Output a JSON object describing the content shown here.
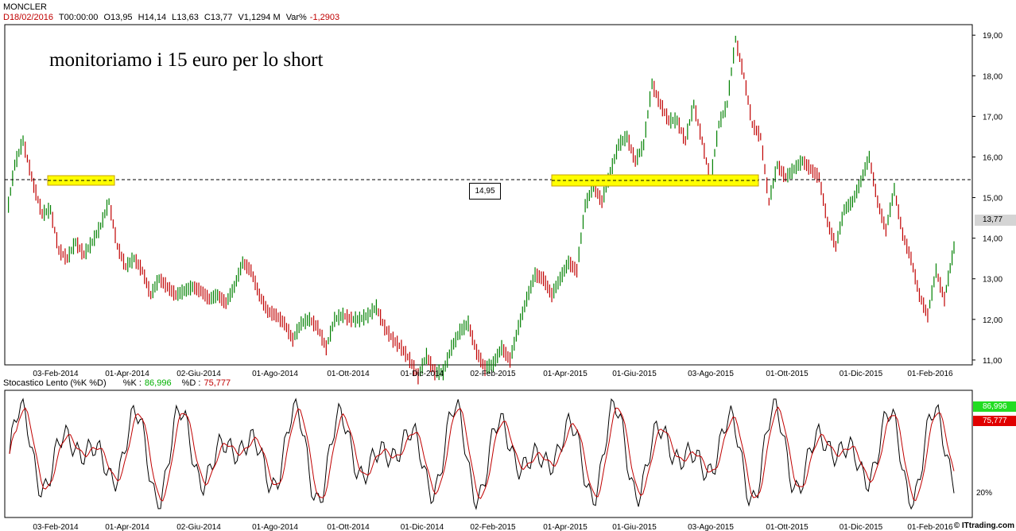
{
  "header": {
    "symbol": "MONCLER",
    "date": "D18/02/2016",
    "time": "T00:00:00",
    "open": "O13,95",
    "high": "H14,14",
    "low": "L13,63",
    "close": "C13,77",
    "volume": "V1,1294 M",
    "var_label": "Var%",
    "var_value": "-1,2903"
  },
  "annotation": "monitoriamo i 15 euro per lo short",
  "level_label": "14,95",
  "last_price_label": "13,77",
  "stochastic": {
    "title": "Stocastico Lento (%K %D)",
    "k_label": "%K :",
    "k_value": "86,996",
    "d_label": "%D :",
    "d_value": "75,777",
    "level_20": "20%"
  },
  "credit": "© ITtrading.com",
  "colors": {
    "up": "#008000",
    "down": "#c00000",
    "highlight": "#ffff00",
    "k_line": "#000000",
    "d_line": "#c00000",
    "overbought": "#00cc00",
    "oversold": "#cc00cc"
  },
  "chart_data": {
    "type": "line",
    "title": "MONCLER",
    "y_ticks": [
      "11,00",
      "12,00",
      "13,00",
      "14,00",
      "15,00",
      "16,00",
      "17,00",
      "18,00",
      "19,00"
    ],
    "ylim": [
      10.9,
      19.2
    ],
    "x_ticks": [
      "03-Feb-2014",
      "01-Apr-2014",
      "02-Giu-2014",
      "01-Ago-2014",
      "01-Ott-2014",
      "01-Dic-2014",
      "02-Feb-2015",
      "01-Apr-2015",
      "01-Giu-2015",
      "03-Ago-2015",
      "01-Ott-2015",
      "01-Dic-2015",
      "01-Feb-2016"
    ],
    "reference_level": 14.95,
    "series": [
      {
        "points": [
          {
            "x": "2013-12-16",
            "y": 14.5
          },
          {
            "x": "2013-12-23",
            "y": 15.8
          },
          {
            "x": "2013-12-30",
            "y": 16.4
          },
          {
            "x": "2014-01-08",
            "y": 15.3
          },
          {
            "x": "2014-01-15",
            "y": 14.6
          },
          {
            "x": "2014-01-22",
            "y": 14.7
          },
          {
            "x": "2014-01-29",
            "y": 13.7
          },
          {
            "x": "2014-02-05",
            "y": 13.5
          },
          {
            "x": "2014-02-12",
            "y": 13.9
          },
          {
            "x": "2014-02-19",
            "y": 13.6
          },
          {
            "x": "2014-02-26",
            "y": 13.9
          },
          {
            "x": "2014-03-05",
            "y": 14.3
          },
          {
            "x": "2014-03-12",
            "y": 14.9
          },
          {
            "x": "2014-03-19",
            "y": 13.8
          },
          {
            "x": "2014-03-26",
            "y": 13.3
          },
          {
            "x": "2014-04-02",
            "y": 13.5
          },
          {
            "x": "2014-04-09",
            "y": 13.2
          },
          {
            "x": "2014-04-16",
            "y": 12.6
          },
          {
            "x": "2014-04-23",
            "y": 13.0
          },
          {
            "x": "2014-04-30",
            "y": 12.8
          },
          {
            "x": "2014-05-07",
            "y": 12.6
          },
          {
            "x": "2014-05-14",
            "y": 12.7
          },
          {
            "x": "2014-05-21",
            "y": 12.8
          },
          {
            "x": "2014-05-28",
            "y": 12.7
          },
          {
            "x": "2014-06-04",
            "y": 12.5
          },
          {
            "x": "2014-06-11",
            "y": 12.6
          },
          {
            "x": "2014-06-18",
            "y": 12.4
          },
          {
            "x": "2014-06-25",
            "y": 12.8
          },
          {
            "x": "2014-07-02",
            "y": 13.4
          },
          {
            "x": "2014-07-09",
            "y": 13.2
          },
          {
            "x": "2014-07-16",
            "y": 12.6
          },
          {
            "x": "2014-07-23",
            "y": 12.2
          },
          {
            "x": "2014-07-30",
            "y": 12.1
          },
          {
            "x": "2014-08-06",
            "y": 11.9
          },
          {
            "x": "2014-08-13",
            "y": 11.5
          },
          {
            "x": "2014-08-20",
            "y": 11.9
          },
          {
            "x": "2014-08-27",
            "y": 12.0
          },
          {
            "x": "2014-09-03",
            "y": 11.8
          },
          {
            "x": "2014-09-10",
            "y": 11.3
          },
          {
            "x": "2014-09-17",
            "y": 12.0
          },
          {
            "x": "2014-09-24",
            "y": 12.1
          },
          {
            "x": "2014-10-01",
            "y": 12.0
          },
          {
            "x": "2014-10-08",
            "y": 12.0
          },
          {
            "x": "2014-10-15",
            "y": 12.1
          },
          {
            "x": "2014-10-22",
            "y": 12.3
          },
          {
            "x": "2014-10-29",
            "y": 11.8
          },
          {
            "x": "2014-11-05",
            "y": 11.5
          },
          {
            "x": "2014-11-12",
            "y": 11.3
          },
          {
            "x": "2014-11-19",
            "y": 11.0
          },
          {
            "x": "2014-11-26",
            "y": 10.6
          },
          {
            "x": "2014-12-03",
            "y": 11.1
          },
          {
            "x": "2014-12-10",
            "y": 10.7
          },
          {
            "x": "2014-12-17",
            "y": 10.7
          },
          {
            "x": "2014-12-24",
            "y": 11.3
          },
          {
            "x": "2014-12-31",
            "y": 11.7
          },
          {
            "x": "2015-01-07",
            "y": 11.9
          },
          {
            "x": "2015-01-14",
            "y": 11.2
          },
          {
            "x": "2015-01-21",
            "y": 10.8
          },
          {
            "x": "2015-01-28",
            "y": 10.9
          },
          {
            "x": "2015-02-04",
            "y": 11.3
          },
          {
            "x": "2015-02-11",
            "y": 11.0
          },
          {
            "x": "2015-02-18",
            "y": 11.8
          },
          {
            "x": "2015-02-25",
            "y": 12.5
          },
          {
            "x": "2015-03-04",
            "y": 13.1
          },
          {
            "x": "2015-03-11",
            "y": 13.0
          },
          {
            "x": "2015-03-18",
            "y": 12.6
          },
          {
            "x": "2015-03-25",
            "y": 13.0
          },
          {
            "x": "2015-04-01",
            "y": 13.4
          },
          {
            "x": "2015-04-08",
            "y": 13.2
          },
          {
            "x": "2015-04-15",
            "y": 14.8
          },
          {
            "x": "2015-04-22",
            "y": 15.3
          },
          {
            "x": "2015-04-29",
            "y": 14.9
          },
          {
            "x": "2015-05-06",
            "y": 15.6
          },
          {
            "x": "2015-05-13",
            "y": 16.3
          },
          {
            "x": "2015-05-20",
            "y": 16.5
          },
          {
            "x": "2015-05-27",
            "y": 15.9
          },
          {
            "x": "2015-06-03",
            "y": 16.3
          },
          {
            "x": "2015-06-10",
            "y": 17.8
          },
          {
            "x": "2015-06-17",
            "y": 17.3
          },
          {
            "x": "2015-06-24",
            "y": 16.9
          },
          {
            "x": "2015-07-01",
            "y": 16.9
          },
          {
            "x": "2015-07-08",
            "y": 16.4
          },
          {
            "x": "2015-07-15",
            "y": 17.3
          },
          {
            "x": "2015-07-22",
            "y": 16.4
          },
          {
            "x": "2015-07-29",
            "y": 15.4
          },
          {
            "x": "2015-08-05",
            "y": 16.8
          },
          {
            "x": "2015-08-12",
            "y": 17.3
          },
          {
            "x": "2015-08-19",
            "y": 18.9
          },
          {
            "x": "2015-08-26",
            "y": 18.0
          },
          {
            "x": "2015-09-02",
            "y": 16.8
          },
          {
            "x": "2015-09-09",
            "y": 16.5
          },
          {
            "x": "2015-09-16",
            "y": 14.9
          },
          {
            "x": "2015-09-23",
            "y": 15.8
          },
          {
            "x": "2015-09-30",
            "y": 15.5
          },
          {
            "x": "2015-10-07",
            "y": 15.7
          },
          {
            "x": "2015-10-14",
            "y": 15.9
          },
          {
            "x": "2015-10-21",
            "y": 15.7
          },
          {
            "x": "2015-10-28",
            "y": 15.5
          },
          {
            "x": "2015-11-04",
            "y": 14.4
          },
          {
            "x": "2015-11-11",
            "y": 13.8
          },
          {
            "x": "2015-11-18",
            "y": 14.7
          },
          {
            "x": "2015-11-25",
            "y": 14.9
          },
          {
            "x": "2015-12-02",
            "y": 15.4
          },
          {
            "x": "2015-12-09",
            "y": 16.0
          },
          {
            "x": "2015-12-16",
            "y": 14.9
          },
          {
            "x": "2015-12-23",
            "y": 14.2
          },
          {
            "x": "2015-12-30",
            "y": 15.2
          },
          {
            "x": "2016-01-06",
            "y": 14.1
          },
          {
            "x": "2016-01-13",
            "y": 13.5
          },
          {
            "x": "2016-01-20",
            "y": 12.6
          },
          {
            "x": "2016-01-27",
            "y": 12.1
          },
          {
            "x": "2016-02-03",
            "y": 13.2
          },
          {
            "x": "2016-02-10",
            "y": 12.5
          },
          {
            "x": "2016-02-18",
            "y": 13.77
          }
        ]
      }
    ]
  }
}
